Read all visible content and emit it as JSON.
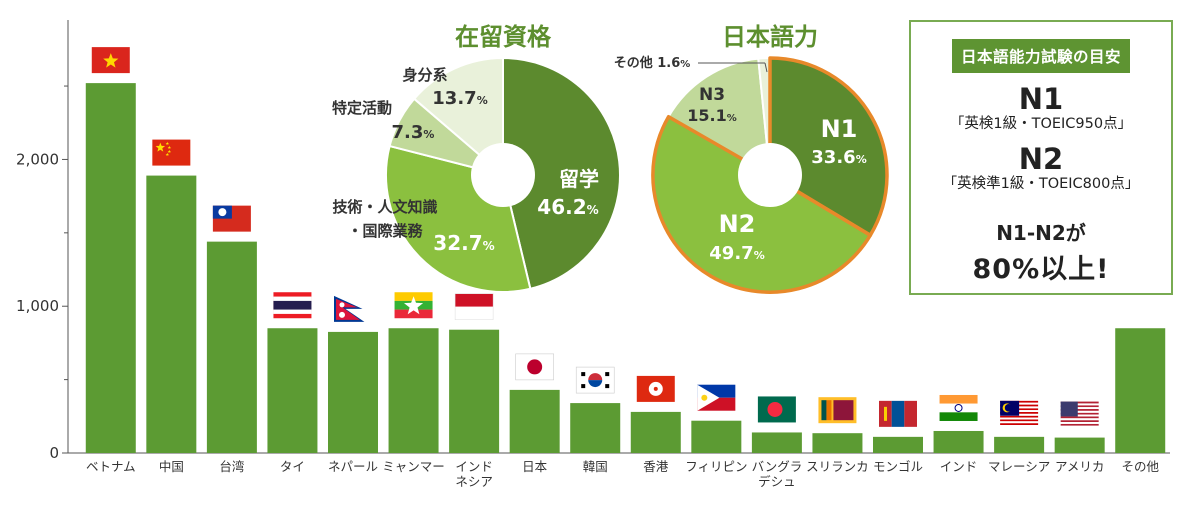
{
  "chart_data": [
    {
      "type": "bar",
      "title": "",
      "xlabel": "",
      "ylabel": "",
      "ylim": [
        0,
        2950
      ],
      "yticks": [
        0,
        1000,
        2000
      ],
      "ytick_labels": [
        "0",
        "1,000",
        "2,000"
      ],
      "minor_yticks": [
        500,
        1500,
        2500
      ],
      "categories": [
        [
          "ベトナム"
        ],
        [
          "中国"
        ],
        [
          "台湾"
        ],
        [
          "タイ"
        ],
        [
          "ネパール"
        ],
        [
          "ミャンマー"
        ],
        [
          "インド",
          "ネシア"
        ],
        [
          "日本"
        ],
        [
          "韓国"
        ],
        [
          "香港"
        ],
        [
          "フィリピン"
        ],
        [
          "バングラ",
          "デシュ"
        ],
        [
          "スリランカ"
        ],
        [
          "モンゴル"
        ],
        [
          "インド"
        ],
        [
          "マレーシア"
        ],
        [
          "アメリカ"
        ],
        [
          "その他"
        ]
      ],
      "values": [
        2520,
        1890,
        1440,
        850,
        825,
        850,
        840,
        430,
        340,
        280,
        220,
        140,
        135,
        110,
        150,
        110,
        105,
        850
      ],
      "flags": [
        "vietnam",
        "china",
        "taiwan",
        "thailand",
        "nepal",
        "myanmar",
        "indonesia",
        "japan",
        "korea",
        "hongkong",
        "philippines",
        "bangladesh",
        "srilanka",
        "mongolia",
        "india",
        "malaysia",
        "usa",
        ""
      ],
      "bar_color": "#5c9b33"
    },
    {
      "type": "pie",
      "title": "在留資格",
      "slices": [
        {
          "label": [
            "留学"
          ],
          "value": 46.2,
          "pct": "46.2",
          "color": "#5c8a2e",
          "label_pos": "inside",
          "text_color": "#ffffff"
        },
        {
          "label": [
            "技術・人文知識",
            "・国際業務"
          ],
          "value": 32.7,
          "pct": "32.7",
          "color": "#8bc03f",
          "label_pos": "split",
          "text_color": "#ffffff"
        },
        {
          "label": [
            "特定活動"
          ],
          "value": 7.3,
          "pct": "7.3",
          "color": "#c1d99a",
          "label_pos": "outside",
          "text_color": "#333333"
        },
        {
          "label": [
            "身分系"
          ],
          "value": 13.7,
          "pct": "13.7",
          "color": "#e9f1da",
          "label_pos": "outside",
          "text_color": "#333333"
        }
      ]
    },
    {
      "type": "pie",
      "title": "日本語力",
      "slices": [
        {
          "label": [
            "N1"
          ],
          "value": 33.6,
          "pct": "33.6",
          "color": "#5c8a2e",
          "label_pos": "inside",
          "text_color": "#ffffff"
        },
        {
          "label": [
            "N2"
          ],
          "value": 49.7,
          "pct": "49.7",
          "color": "#8bc03f",
          "label_pos": "inside",
          "text_color": "#ffffff"
        },
        {
          "label": [
            "N3"
          ],
          "value": 15.1,
          "pct": "15.1",
          "color": "#c1d99a",
          "label_pos": "inside",
          "text_color": "#333333"
        },
        {
          "label": [
            "その他"
          ],
          "value": 1.6,
          "pct": "1.6",
          "color": "#e9f1da",
          "label_pos": "outside",
          "text_color": "#333333"
        }
      ],
      "highlight_color": "#e8892a",
      "highlight_slices": [
        "N1",
        "N2"
      ]
    }
  ],
  "jlpt_box": {
    "header": "日本語能力試験の目安",
    "levels": [
      {
        "level": "N1",
        "note": "「英検1級・TOEIC950点」"
      },
      {
        "level": "N2",
        "note": "「英検準1級・TOEIC800点」"
      }
    ],
    "footer_line1": "N1-N2が",
    "footer_line2": "80%以上!"
  }
}
